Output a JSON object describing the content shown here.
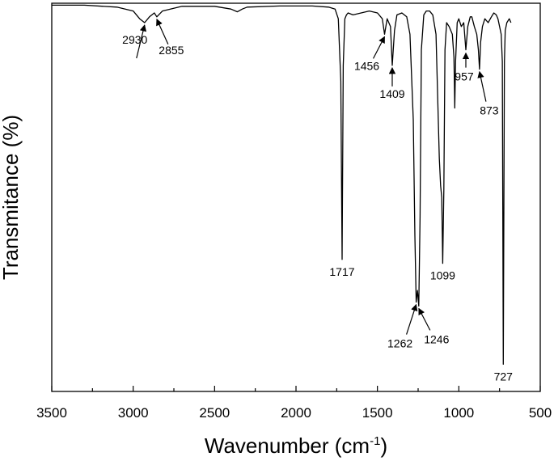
{
  "chart_data": {
    "type": "line",
    "xlabel_main": "Wavenumber (cm",
    "xlabel_sup": "-1",
    "xlabel_end": ")",
    "ylabel": "Transmitance (%)",
    "xlim": [
      3500,
      500
    ],
    "ylim": [
      0,
      100
    ],
    "x_reversed": true,
    "y_ticks_shown": false,
    "grid": false,
    "x_ticks": [
      "3500",
      "3000",
      "2500",
      "2000",
      "1500",
      "1000",
      "500"
    ],
    "series": [
      {
        "color": "#000000",
        "x": [
          3500,
          3300,
          3100,
          3000,
          2960,
          2930,
          2900,
          2870,
          2855,
          2820,
          2700,
          2500,
          2400,
          2360,
          2330,
          2300,
          2100,
          1900,
          1800,
          1760,
          1740,
          1725,
          1717,
          1710,
          1700,
          1690,
          1680,
          1650,
          1600,
          1550,
          1500,
          1470,
          1456,
          1440,
          1420,
          1409,
          1395,
          1380,
          1350,
          1320,
          1300,
          1280,
          1270,
          1262,
          1254,
          1246,
          1238,
          1230,
          1215,
          1200,
          1180,
          1160,
          1140,
          1120,
          1112,
          1105,
          1099,
          1092,
          1085,
          1075,
          1060,
          1040,
          1030,
          1025,
          1020,
          1010,
          1000,
          985,
          970,
          957,
          945,
          930,
          920,
          905,
          890,
          880,
          873,
          866,
          855,
          840,
          820,
          800,
          785,
          770,
          760,
          750,
          740,
          733,
          727,
          720,
          715,
          705,
          690,
          680
        ],
        "y": [
          99.5,
          99.5,
          99,
          98,
          96,
          95,
          96.5,
          97.5,
          96.5,
          98,
          99.2,
          99.2,
          98.5,
          97.8,
          98.5,
          99,
          99.3,
          99.3,
          99,
          98.5,
          96,
          80,
          34,
          84,
          96,
          97,
          97.5,
          97,
          97.5,
          98,
          97.5,
          96,
          92,
          96,
          94,
          84,
          93,
          97,
          97.5,
          96.5,
          92,
          70,
          40,
          23,
          26,
          22,
          45,
          88,
          97,
          98,
          98,
          97,
          92,
          60,
          53,
          50,
          33,
          52,
          88,
          95,
          94,
          92,
          86,
          73,
          85,
          95,
          96,
          94,
          95,
          88,
          94,
          96.5,
          96.5,
          94,
          92,
          88,
          83,
          90,
          94,
          96,
          95,
          96.5,
          97.5,
          97,
          96,
          94,
          92,
          85,
          7,
          85,
          93,
          95,
          96,
          95
        ]
      }
    ],
    "annotations": [
      {
        "label": "2930",
        "point": [
          2930,
          95
        ]
      },
      {
        "label": "2855",
        "point": [
          2855,
          96.5
        ]
      },
      {
        "label": "1456",
        "point": [
          1456,
          92
        ]
      },
      {
        "label": "1409",
        "point": [
          1409,
          84
        ]
      },
      {
        "label": "1717",
        "point": [
          1717,
          34
        ]
      },
      {
        "label": "1262",
        "point": [
          1262,
          23
        ]
      },
      {
        "label": "1246",
        "point": [
          1246,
          22
        ]
      },
      {
        "label": "1099",
        "point": [
          1099,
          33
        ]
      },
      {
        "label": "957",
        "point": [
          957,
          88
        ]
      },
      {
        "label": "873",
        "point": [
          873,
          83
        ]
      },
      {
        "label": "727",
        "point": [
          727,
          7
        ]
      }
    ]
  }
}
